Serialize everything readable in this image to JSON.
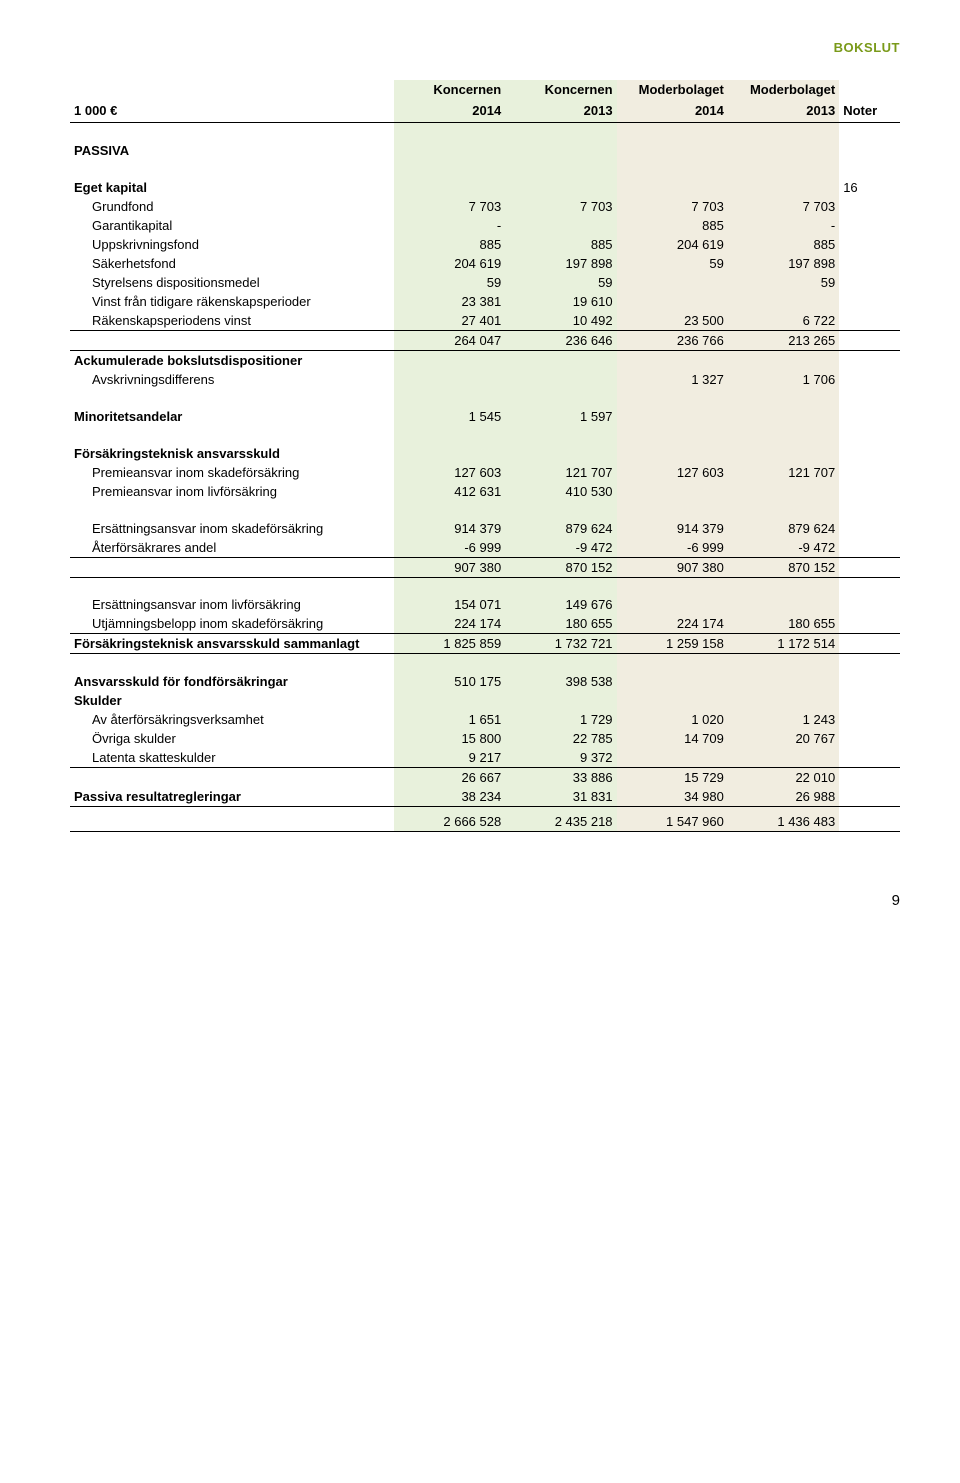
{
  "doc_label": "BOKSLUT",
  "page_number": "9",
  "columns": {
    "unit": "1 000 €",
    "c1_top": "Koncernen",
    "c1_bot": "2014",
    "c2_top": "Koncernen",
    "c2_bot": "2013",
    "c3_top": "Moderbolaget",
    "c3_bot": "2014",
    "c4_top": "Moderbolaget",
    "c4_bot": "2013",
    "noter": "Noter"
  },
  "passiva_title": "PASSIVA",
  "eget": {
    "title": "Eget kapital",
    "noter": "16",
    "rows": [
      {
        "label": "Grundfond",
        "c1": "7 703",
        "c2": "7 703",
        "c3": "7 703",
        "c4": "7 703"
      },
      {
        "label": "Garantikapital",
        "c1": "-",
        "c2": "",
        "c3": "885",
        "c4": "-"
      },
      {
        "label": "Uppskrivningsfond",
        "c1": "885",
        "c2": "885",
        "c3": "204 619",
        "c4": "885"
      },
      {
        "label": "Säkerhetsfond",
        "c1": "204 619",
        "c2": "197 898",
        "c3": "59",
        "c4": "197 898"
      },
      {
        "label": "Styrelsens dispositionsmedel",
        "c1": "59",
        "c2": "59",
        "c3": "",
        "c4": "59"
      },
      {
        "label": "Vinst från tidigare räkenskapsperioder",
        "c1": "23 381",
        "c2": "19 610",
        "c3": "",
        "c4": ""
      },
      {
        "label": "Räkenskapsperiodens vinst",
        "c1": "27 401",
        "c2": "10 492",
        "c3": "23 500",
        "c4": "6 722"
      }
    ],
    "subtotal": {
      "c1": "264 047",
      "c2": "236 646",
      "c3": "236 766",
      "c4": "213 265"
    }
  },
  "ack": {
    "title": "Ackumulerade bokslutsdispositioner",
    "row": {
      "label": "Avskrivningsdifferens",
      "c3": "1 327",
      "c4": "1 706"
    }
  },
  "minor": {
    "label": "Minoritetsandelar",
    "c1": "1 545",
    "c2": "1 597"
  },
  "fta": {
    "title": "Försäkringsteknisk ansvarsskuld",
    "rows": [
      {
        "label": "Premieansvar inom skadeförsäkring",
        "c1": "127 603",
        "c2": "121 707",
        "c3": "127 603",
        "c4": "121 707"
      },
      {
        "label": "Premieansvar inom livförsäkring",
        "c1": "412 631",
        "c2": "410 530",
        "c3": "",
        "c4": ""
      }
    ]
  },
  "ers_s": {
    "rows": [
      {
        "label": "Ersättningsansvar inom skadeförsäkring",
        "c1": "914 379",
        "c2": "879 624",
        "c3": "914 379",
        "c4": "879 624"
      },
      {
        "label": "Återförsäkrares andel",
        "c1": "-6 999",
        "c2": "-9 472",
        "c3": "-6 999",
        "c4": "-9 472"
      }
    ],
    "subtotal": {
      "c1": "907 380",
      "c2": "870 152",
      "c3": "907 380",
      "c4": "870 152"
    }
  },
  "ers_l": {
    "rows": [
      {
        "label": "Ersättningsansvar inom livförsäkring",
        "c1": "154 071",
        "c2": "149 676",
        "c3": "",
        "c4": ""
      },
      {
        "label": "Utjämningsbelopp inom skadeförsäkring",
        "c1": "224 174",
        "c2": "180 655",
        "c3": "224 174",
        "c4": "180 655"
      }
    ]
  },
  "fta_total": {
    "label": "Försäkringsteknisk ansvarsskuld sammanlagt",
    "c1": "1 825 859",
    "c2": "1 732 721",
    "c3": "1 259 158",
    "c4": "1 172 514"
  },
  "fond": {
    "label": "Ansvarsskuld för fondförsäkringar",
    "c1": "510 175",
    "c2": "398 538"
  },
  "skulder": {
    "title": "Skulder",
    "rows": [
      {
        "label": "Av återförsäkringsverksamhet",
        "c1": "1 651",
        "c2": "1 729",
        "c3": "1 020",
        "c4": "1 243"
      },
      {
        "label": "Övriga skulder",
        "c1": "15 800",
        "c2": "22 785",
        "c3": "14 709",
        "c4": "20 767"
      },
      {
        "label": "Latenta skatteskulder",
        "c1": "9 217",
        "c2": "9 372",
        "c3": "",
        "c4": ""
      }
    ],
    "subtotal": {
      "c1": "26 667",
      "c2": "33 886",
      "c3": "15 729",
      "c4": "22 010"
    }
  },
  "passreg": {
    "label": "Passiva resultatregleringar",
    "c1": "38 234",
    "c2": "31 831",
    "c3": "34 980",
    "c4": "26 988"
  },
  "grand": {
    "c1": "2 666 528",
    "c2": "2 435 218",
    "c3": "1 547 960",
    "c4": "1 436 483"
  }
}
